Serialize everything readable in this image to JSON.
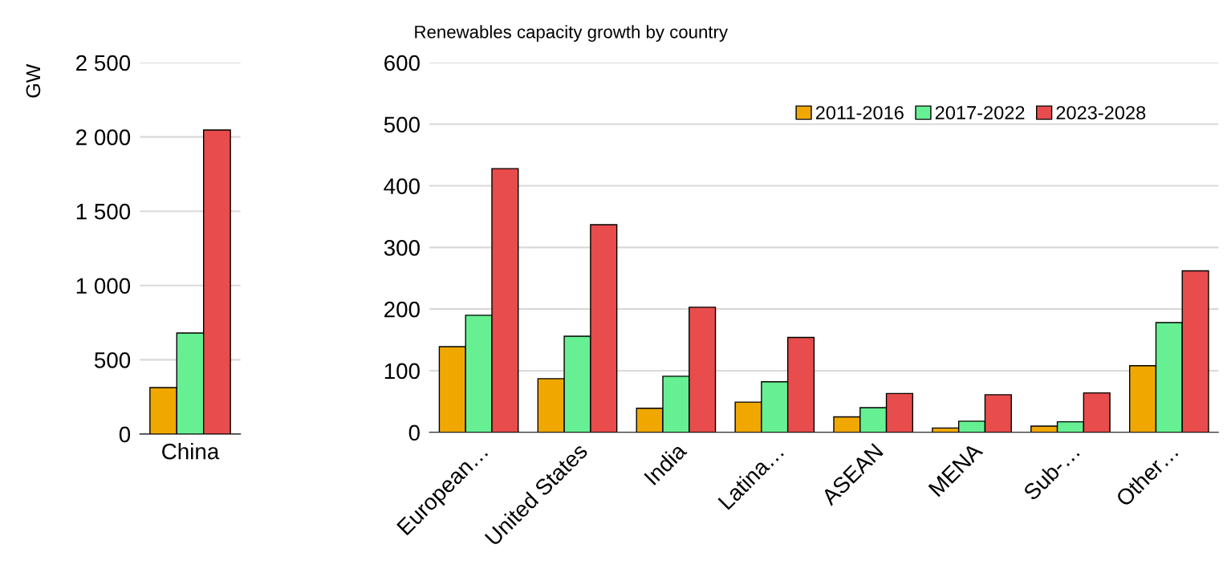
{
  "chart_data": [
    {
      "type": "bar",
      "ylabel": "GW",
      "categories": [
        "China"
      ],
      "ylim": [
        0,
        2500
      ],
      "yticks": [
        0,
        500,
        {
          "value": 1000,
          "label": "1 000"
        },
        {
          "value": 1500,
          "label": "1 500"
        },
        {
          "value": 2000,
          "label": "2 000"
        },
        {
          "value": 2500,
          "label": "2 500"
        }
      ],
      "grid": "y",
      "series": [
        {
          "color": "#f0a800",
          "values": [
            313
          ]
        },
        {
          "color": "#66f093",
          "values": [
            680
          ]
        },
        {
          "color": "#e84c4c",
          "values": [
            2046
          ]
        }
      ]
    },
    {
      "type": "bar",
      "title": "Renewables capacity growth by country",
      "categories": [
        "European…",
        "United States",
        "India",
        "Latina…",
        "ASEAN",
        "MENA",
        "Sub-…",
        "Other…"
      ],
      "ylim": [
        0,
        600
      ],
      "yticks": [
        0,
        100,
        200,
        300,
        400,
        500,
        600
      ],
      "grid": "y",
      "legend": "top right",
      "series": [
        {
          "name": "2011-2016",
          "color": "#f0a800",
          "values": [
            139,
            87,
            39,
            49,
            25,
            7,
            10,
            108
          ]
        },
        {
          "name": "2017-2022",
          "color": "#66f093",
          "values": [
            190,
            156,
            91,
            82,
            40,
            18,
            17,
            178
          ]
        },
        {
          "name": "2023-2028",
          "color": "#e84c4c",
          "values": [
            428,
            337,
            203,
            154,
            63,
            61,
            64,
            262
          ]
        }
      ]
    }
  ]
}
